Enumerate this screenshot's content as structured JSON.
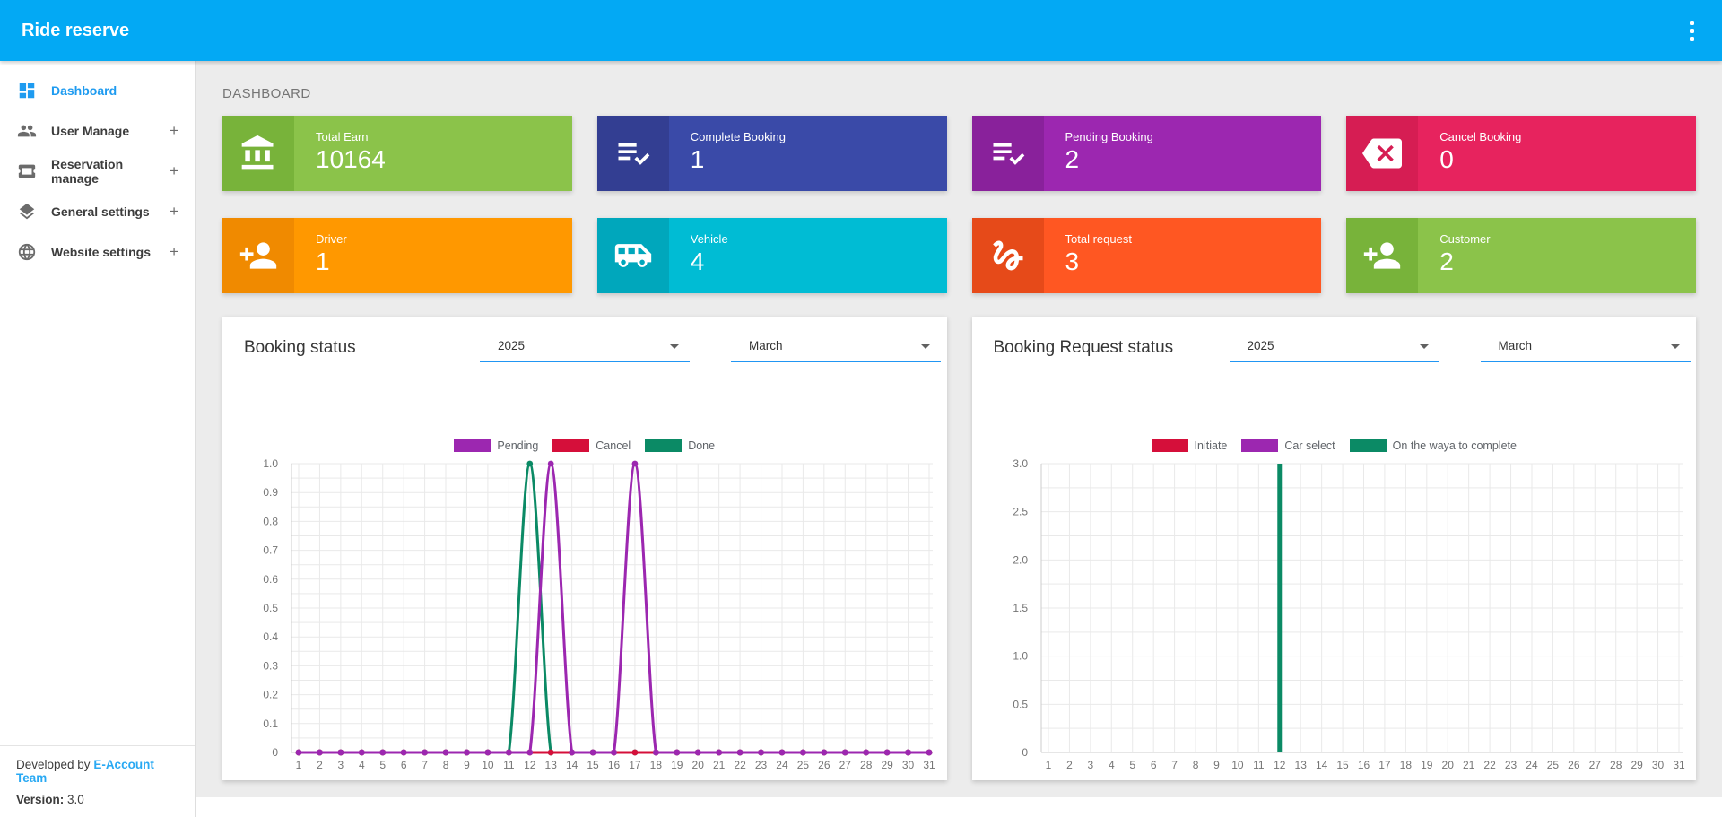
{
  "topbar": {
    "title": "Ride reserve",
    "bg_color": "#03A9F4",
    "menu_icon": "kebab-menu-icon"
  },
  "sidebar": {
    "expand_glyph": "+",
    "items": [
      {
        "label": "Dashboard",
        "icon": "dashboard-icon",
        "active": true,
        "expandable": false
      },
      {
        "label": "User Manage",
        "icon": "users-icon",
        "active": false,
        "expandable": true
      },
      {
        "label": "Reservation manage",
        "icon": "ticket-icon",
        "active": false,
        "expandable": true
      },
      {
        "label": "General settings",
        "icon": "layers-icon",
        "active": false,
        "expandable": true
      },
      {
        "label": "Website settings",
        "icon": "globe-icon",
        "active": false,
        "expandable": true
      }
    ],
    "footer": {
      "developed_prefix": "Developed by ",
      "developed_link": "E-Account Team",
      "version_label": "Version:",
      "version_value": " 3.0"
    }
  },
  "main": {
    "page_title": "DASHBOARD",
    "stat_cards": [
      {
        "label": "Total Earn",
        "value": "10164",
        "icon": "bank-icon",
        "body_color": "#8BC34A",
        "icon_color": "#78B33A"
      },
      {
        "label": "Complete Booking",
        "value": "1",
        "icon": "playlist-check-icon",
        "body_color": "#3A4AA8",
        "icon_color": "#333E92"
      },
      {
        "label": "Pending Booking",
        "value": "2",
        "icon": "playlist-check-icon",
        "body_color": "#9C27B0",
        "icon_color": "#89219B"
      },
      {
        "label": "Cancel Booking",
        "value": "0",
        "icon": "backspace-x-icon",
        "body_color": "#E7235E",
        "icon_color": "#D61D53"
      },
      {
        "label": "Driver",
        "value": "1",
        "icon": "person-add-icon",
        "body_color": "#FF9800",
        "icon_color": "#F08A00"
      },
      {
        "label": "Vehicle",
        "value": "4",
        "icon": "shuttle-icon",
        "body_color": "#00BCD4",
        "icon_color": "#00A7BC"
      },
      {
        "label": "Total request",
        "value": "3",
        "icon": "gesture-icon",
        "body_color": "#FF5722",
        "icon_color": "#E64A19"
      },
      {
        "label": "Customer",
        "value": "2",
        "icon": "person-add-icon",
        "body_color": "#8BC34A",
        "icon_color": "#78B33A"
      }
    ]
  },
  "chart_data": [
    {
      "type": "line",
      "title": "Booking status",
      "year": "2025",
      "month": "March",
      "legend_position": "top-center",
      "grid": true,
      "categories": [
        "1",
        "2",
        "3",
        "4",
        "5",
        "6",
        "7",
        "8",
        "9",
        "10",
        "11",
        "12",
        "13",
        "14",
        "15",
        "16",
        "17",
        "18",
        "19",
        "20",
        "21",
        "22",
        "23",
        "24",
        "25",
        "26",
        "27",
        "28",
        "29",
        "30",
        "31"
      ],
      "series": [
        {
          "name": "Pending",
          "color": "#9C27B0",
          "values": [
            0,
            0,
            0,
            0,
            0,
            0,
            0,
            0,
            0,
            0,
            0,
            0,
            1,
            0,
            0,
            0,
            1,
            0,
            0,
            0,
            0,
            0,
            0,
            0,
            0,
            0,
            0,
            0,
            0,
            0,
            0
          ]
        },
        {
          "name": "Cancel",
          "color": "#D50F3A",
          "values": [
            0,
            0,
            0,
            0,
            0,
            0,
            0,
            0,
            0,
            0,
            0,
            0,
            0,
            0,
            0,
            0,
            0,
            0,
            0,
            0,
            0,
            0,
            0,
            0,
            0,
            0,
            0,
            0,
            0,
            0,
            0
          ]
        },
        {
          "name": "Done",
          "color": "#0B8A65",
          "values": [
            0,
            0,
            0,
            0,
            0,
            0,
            0,
            0,
            0,
            0,
            0,
            1,
            0,
            0,
            0,
            0,
            0,
            0,
            0,
            0,
            0,
            0,
            0,
            0,
            0,
            0,
            0,
            0,
            0,
            0,
            0
          ]
        }
      ],
      "paint_order": [
        2,
        1,
        0
      ],
      "ylim": [
        0,
        1
      ],
      "ytick_step": 0.1,
      "grid_step": 0.05
    },
    {
      "type": "bar",
      "title": "Booking Request status",
      "year": "2025",
      "month": "March",
      "legend_position": "top-center",
      "grid": true,
      "categories": [
        "1",
        "2",
        "3",
        "4",
        "5",
        "6",
        "7",
        "8",
        "9",
        "10",
        "11",
        "12",
        "13",
        "14",
        "15",
        "16",
        "17",
        "18",
        "19",
        "20",
        "21",
        "22",
        "23",
        "24",
        "25",
        "26",
        "27",
        "28",
        "29",
        "30",
        "31"
      ],
      "series": [
        {
          "name": "Initiate",
          "color": "#D50F3A",
          "values": [
            0,
            0,
            0,
            0,
            0,
            0,
            0,
            0,
            0,
            0,
            0,
            0,
            0,
            0,
            0,
            0,
            0,
            0,
            0,
            0,
            0,
            0,
            0,
            0,
            0,
            0,
            0,
            0,
            0,
            0,
            0
          ]
        },
        {
          "name": "Car select",
          "color": "#9C27B0",
          "values": [
            0,
            0,
            0,
            0,
            0,
            0,
            0,
            0,
            0,
            0,
            0,
            0,
            0,
            0,
            0,
            0,
            0,
            0,
            0,
            0,
            0,
            0,
            0,
            0,
            0,
            0,
            0,
            0,
            0,
            0,
            0
          ]
        },
        {
          "name": "On the waya to complete",
          "color": "#0B8A65",
          "values": [
            0,
            0,
            0,
            0,
            0,
            0,
            0,
            0,
            0,
            0,
            0,
            3,
            0,
            0,
            0,
            0,
            0,
            0,
            0,
            0,
            0,
            0,
            0,
            0,
            0,
            0,
            0,
            0,
            0,
            0,
            0
          ]
        }
      ],
      "ylim": [
        0,
        3
      ],
      "ytick_step": 0.5,
      "grid_step": 0.25
    }
  ]
}
